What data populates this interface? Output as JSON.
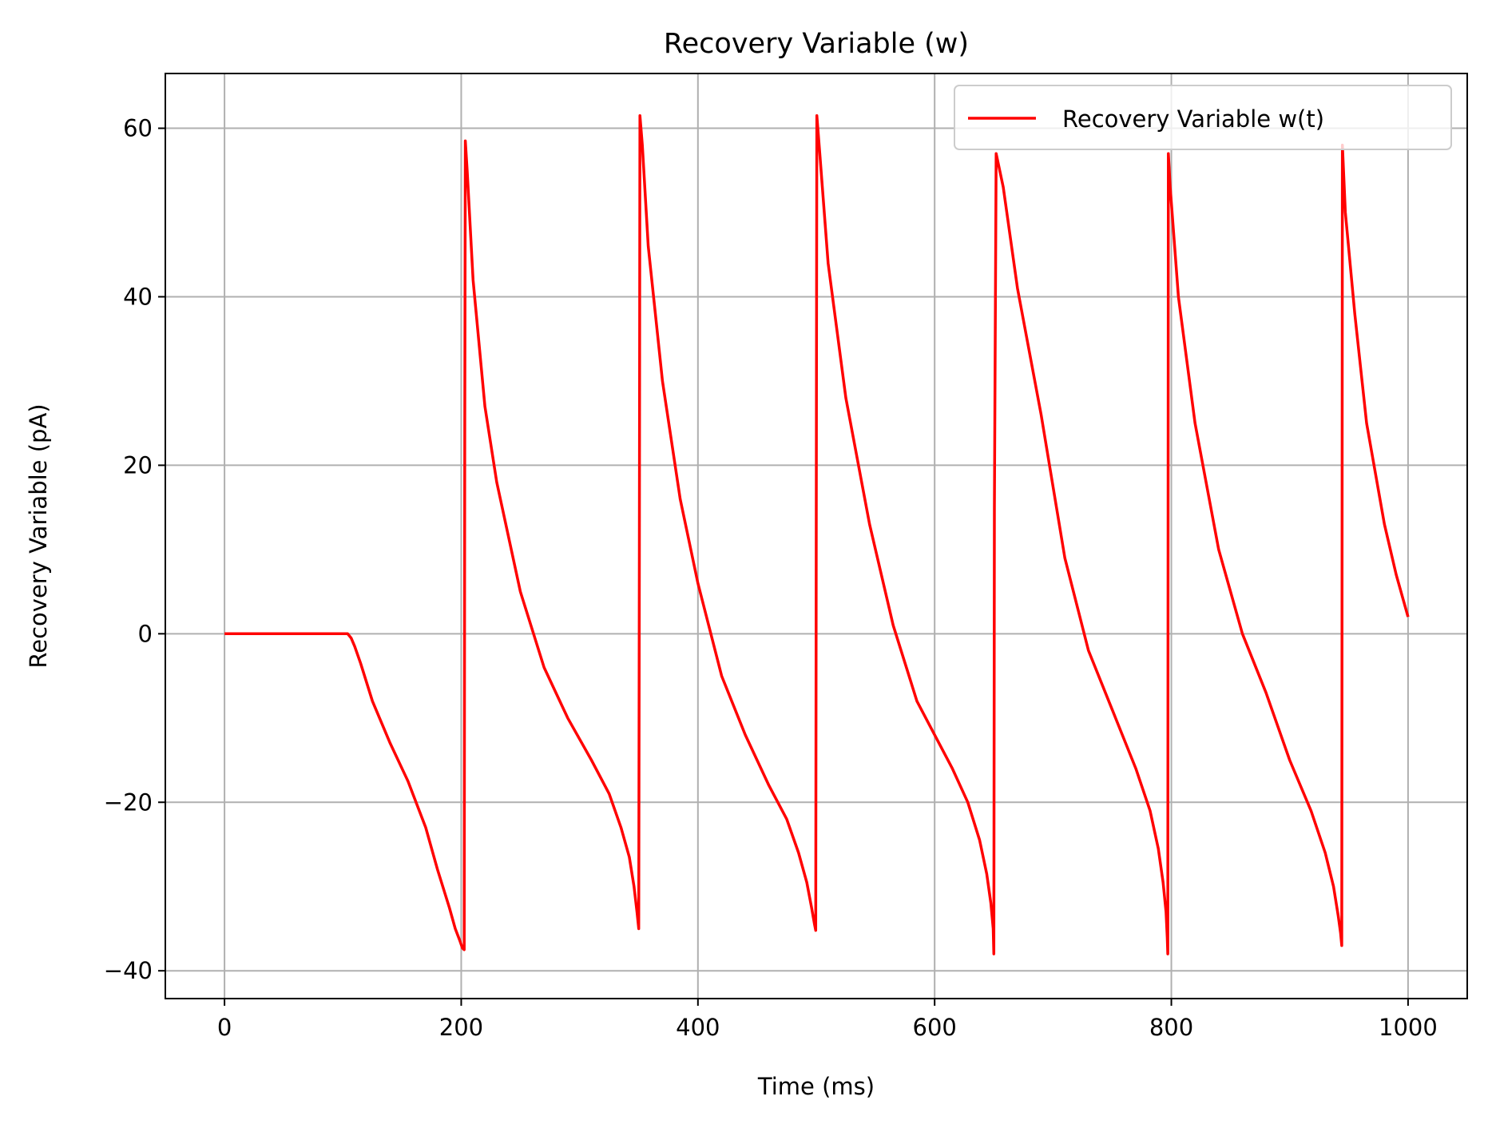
{
  "chart_data": {
    "type": "line",
    "title": "Recovery Variable (w)",
    "xlabel": "Time (ms)",
    "ylabel": "Recovery Variable (pA)",
    "xlim": [
      -50,
      1050
    ],
    "ylim": [
      -43.3,
      66.5
    ],
    "xticks": [
      0,
      200,
      400,
      600,
      800,
      1000
    ],
    "yticks": [
      -40,
      -20,
      0,
      20,
      40,
      60
    ],
    "xtick_labels": [
      "0",
      "200",
      "400",
      "600",
      "800",
      "1000"
    ],
    "ytick_labels": [
      "−40",
      "−20",
      "0",
      "20",
      "40",
      "60"
    ],
    "grid": true,
    "legend_position": "upper right",
    "colors": {
      "line": "#ff0000",
      "grid": "#b0b0b0",
      "axes": "#000000"
    },
    "series": [
      {
        "name": "Recovery Variable w(t)",
        "color": "#ff0000",
        "x": [
          0,
          100,
          104,
          107,
          110,
          115,
          125,
          140,
          155,
          170,
          180,
          190,
          195,
          199,
          201,
          202.5,
          203,
          203.5,
          205,
          210,
          220,
          230,
          250,
          270,
          290,
          310,
          325,
          335,
          342,
          346,
          348.5,
          350,
          350.5,
          351,
          353,
          358,
          370,
          385,
          400,
          420,
          440,
          460,
          475,
          485,
          492,
          496,
          498.5,
          499.5,
          500,
          500.5,
          503,
          510,
          525,
          545,
          565,
          585,
          600,
          615,
          628,
          638,
          644,
          647.5,
          649.5,
          650,
          650.5,
          652,
          658,
          670,
          690,
          710,
          730,
          750,
          770,
          782,
          789,
          793,
          795.5,
          796.5,
          797,
          797.5,
          799,
          806,
          820,
          840,
          860,
          880,
          900,
          918,
          930,
          937,
          941,
          943,
          944,
          944.5,
          947,
          955,
          965,
          980,
          990,
          1000
        ],
        "y": [
          0,
          0,
          0,
          -0.5,
          -1.5,
          -3.5,
          -8,
          -13,
          -17.5,
          -23,
          -28,
          -32.5,
          -35,
          -36.5,
          -37.3,
          -37.5,
          25,
          58.5,
          55,
          42,
          27,
          18,
          5,
          -4,
          -10,
          -15,
          -19,
          -23,
          -26.5,
          -30,
          -33,
          -35,
          10,
          61.5,
          58,
          46,
          30,
          16,
          6,
          -5,
          -12,
          -18,
          -22,
          -26,
          -29.5,
          -32.5,
          -34.5,
          -35.2,
          15,
          61.5,
          57,
          44,
          28,
          13,
          1,
          -8,
          -12,
          -16,
          -20,
          -24.5,
          -28.5,
          -32,
          -35,
          -38,
          15,
          57,
          53,
          41,
          26,
          9,
          -2,
          -9,
          -16,
          -21,
          -25.5,
          -29.5,
          -33,
          -36,
          -38,
          57,
          53,
          40,
          25,
          10,
          0,
          -7,
          -15,
          -21,
          -26,
          -30,
          -33.5,
          -35.5,
          -37,
          58,
          50,
          38,
          25,
          13,
          7,
          2
        ]
      }
    ]
  }
}
